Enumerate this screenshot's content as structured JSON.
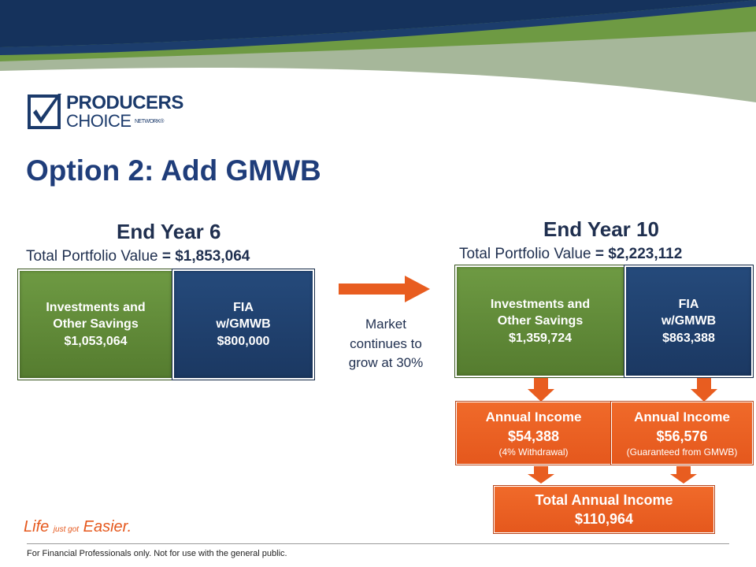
{
  "colors": {
    "navy": "#1b3862",
    "green": "#5e8a36",
    "orange": "#e85d20",
    "title": "#1f3d7a"
  },
  "brand": {
    "logo_line1": "PRODUCERS",
    "logo_line2": "CHOICE",
    "logo_sub": "NETWORK®",
    "tagline_a": "Life",
    "tagline_b": "just got",
    "tagline_c": "Easier."
  },
  "title": "Option 2: Add GMWB",
  "left": {
    "year": "End Year 6",
    "tpv_label": "Total Portfolio Value",
    "tpv_value": "= $1,853,064",
    "inv_line1": "Investments and",
    "inv_line2": "Other Savings",
    "inv_value": "$1,053,064",
    "fia_line1": "FIA",
    "fia_line2": "w/GMWB",
    "fia_value": "$800,000"
  },
  "middle": {
    "line1": "Market",
    "line2": "continues to",
    "line3": "grow at 30%"
  },
  "right": {
    "year": "End Year 10",
    "tpv_label": "Total Portfolio Value",
    "tpv_value": "= $2,223,112",
    "inv_line1": "Investments and",
    "inv_line2": "Other Savings",
    "inv_value": "$1,359,724",
    "fia_line1": "FIA",
    "fia_line2": "w/GMWB",
    "fia_value": "$863,388",
    "income1_label": "Annual Income",
    "income1_value": "$54,388",
    "income1_note": "(4% Withdrawal)",
    "income2_label": "Annual Income",
    "income2_value": "$56,576",
    "income2_note": "(Guaranteed from GMWB)",
    "total_label": "Total Annual Income",
    "total_value": "$110,964"
  },
  "footer": "For Financial Professionals only. Not for use with the general public."
}
